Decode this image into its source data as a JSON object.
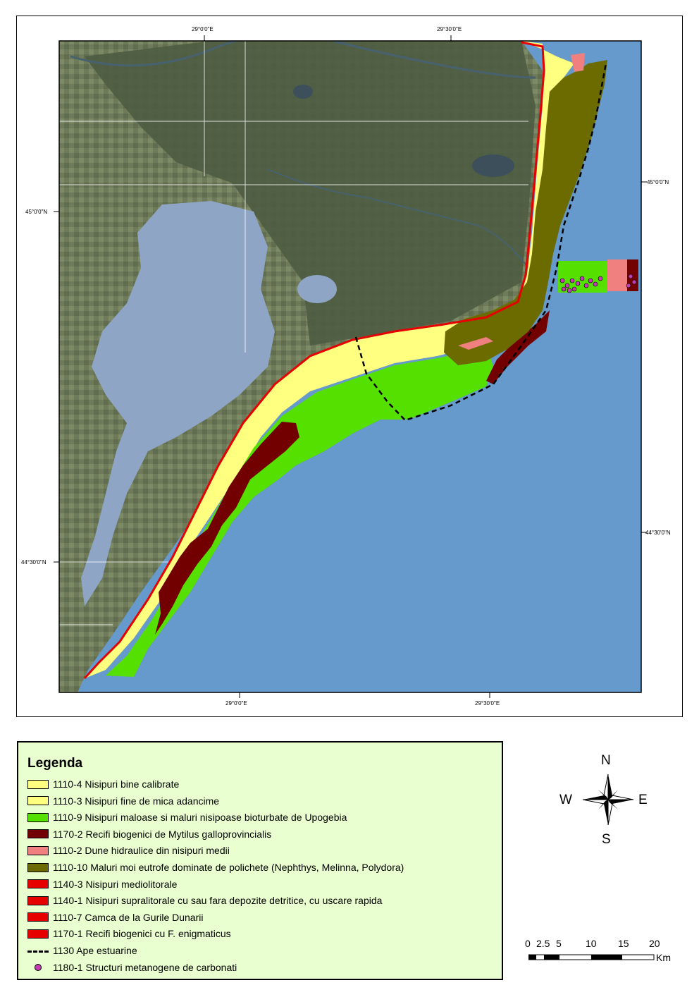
{
  "map": {
    "coords": {
      "top_lon1": "29°0'0\"E",
      "top_lon2": "29°30'0\"E",
      "bottom_lon1": "29°0'0\"E",
      "bottom_lon2": "29°30'0\"E",
      "left_lat1": "45°0'0\"N",
      "left_lat2": "44°30'0\"N",
      "right_lat1": "45°0'0\"N",
      "right_lat2": "44°30'0\"N"
    },
    "colors": {
      "sea": "#6699cc",
      "land": "#5c6b4f",
      "lagoon": "#8fa5c6",
      "yellow": "#ffff80",
      "green": "#55e000",
      "darkred": "#730000",
      "salmon": "#f08080",
      "olive": "#6b6b00",
      "red": "#e60000",
      "methane": "#c43bb3"
    }
  },
  "legend": {
    "title": "Legenda",
    "items": [
      {
        "label": "1110-4 Nisipuri bine calibrate",
        "color": "#ffff80",
        "kind": "box"
      },
      {
        "label": "1110-3 Nisipuri fine de mica adancime",
        "color": "#ffff80",
        "kind": "box"
      },
      {
        "label": "1110-9 Nisipuri maloase si maluri nisipoase bioturbate de Upogebia",
        "color": "#55e000",
        "kind": "box"
      },
      {
        "label": "1170-2 Recifi biogenici de Mytilus galloprovincialis",
        "color": "#730000",
        "kind": "box"
      },
      {
        "label": "1110-2 Dune hidraulice din nisipuri medii",
        "color": "#f08080",
        "kind": "box"
      },
      {
        "label": "1110-10 Maluri moi eutrofe dominate de polichete (Nephthys, Melinna, Polydora)",
        "color": "#6b6b00",
        "kind": "box"
      },
      {
        "label": "1140-3 Nisipuri mediolitorale",
        "color": "#e60000",
        "kind": "box"
      },
      {
        "label": "1140-1 Nisipuri supralitorale cu sau fara depozite detritice, cu uscare rapida",
        "color": "#e60000",
        "kind": "box"
      },
      {
        "label": "1110-7 Camca de la Gurile Dunarii",
        "color": "#e60000",
        "kind": "box"
      },
      {
        "label": "1170-1 Recifi biogenici cu F. enigmaticus",
        "color": "#e60000",
        "kind": "box"
      },
      {
        "label": "1130 Ape estuarine",
        "color": "#000000",
        "kind": "line"
      },
      {
        "label": "1180-1 Structuri metanogene de carbonati",
        "color": "#c43bb3",
        "kind": "dot"
      }
    ]
  },
  "compass": {
    "n": "N",
    "s": "S",
    "e": "E",
    "w": "W"
  },
  "scale": {
    "ticks": [
      "0",
      "2.5",
      "5",
      "10",
      "15",
      "20"
    ],
    "unit": "Km"
  }
}
